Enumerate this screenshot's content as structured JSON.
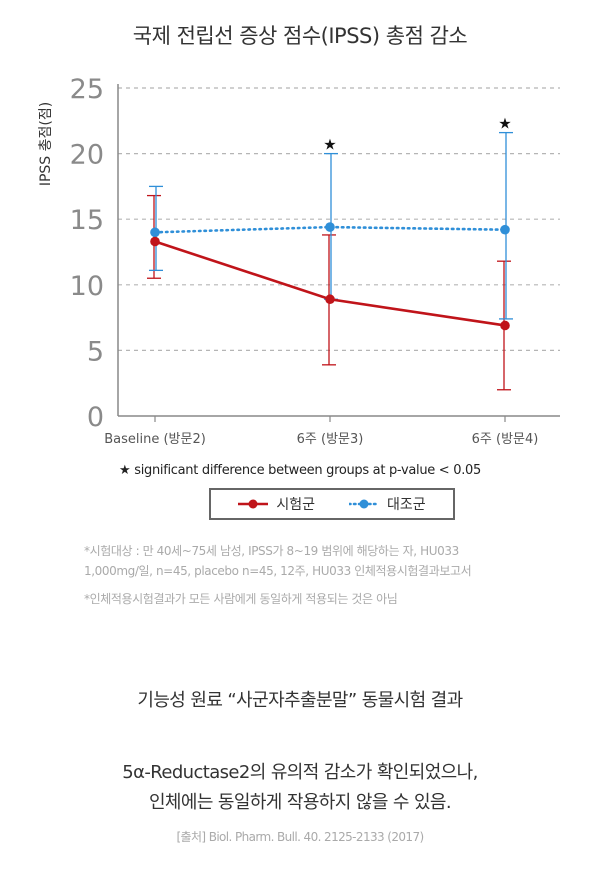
{
  "chart_data": {
    "type": "line",
    "title": "국제 전립선 증상 점수(IPSS) 총점 감소",
    "ylabel": "IPSS 총점(점)",
    "xlabel": "",
    "categories": [
      "Baseline (방문2)",
      "6주 (방문3)",
      "6주 (방문4)"
    ],
    "ylim": [
      0,
      25
    ],
    "yticks": [
      0,
      5,
      10,
      15,
      20,
      25
    ],
    "grid": true,
    "series": [
      {
        "name": "시험군",
        "color": "#c0141a",
        "line_style": "solid",
        "values": [
          13.3,
          8.9,
          6.9
        ],
        "error_low": [
          10.5,
          3.9,
          2.0
        ],
        "error_high": [
          16.8,
          13.8,
          11.8
        ]
      },
      {
        "name": "대조군",
        "color": "#2f8fd8",
        "line_style": "dotted",
        "values": [
          14.0,
          14.4,
          14.2
        ],
        "error_low": [
          11.1,
          8.9,
          7.4
        ],
        "error_high": [
          17.5,
          20.0,
          21.6
        ]
      }
    ],
    "significance_markers": [
      {
        "category_index": 1,
        "symbol": "★",
        "y": 20.7
      },
      {
        "category_index": 2,
        "symbol": "★",
        "y": 22.3
      }
    ],
    "significance_note": {
      "symbol": "★",
      "text": "significant difference between groups at p-value < 0.05"
    },
    "legend_position": "bottom-center"
  },
  "footnotes": [
    "*시험대상 : 만 40세~75세 남성, IPSS가 8~19 범위에 해당하는 자, HU033",
    "1,000mg/일, n=45, placebo n=45, 12주, HU033 인체적용시험결과보고서",
    "*인체적용시험결과가 모든 사람에게 동일하게 적용되는 것은 아님"
  ],
  "bottom": {
    "heading": "기능성 원료 “사군자추출분말” 동물시험 결과",
    "line1": "5α-Reductase2의 유의적 감소가 확인되었으나,",
    "line2": "인체에는 동일하게 작용하지 않을 수 있음.",
    "source": "[출처] Biol. Pharm. Bull. 40. 2125-2133 (2017)"
  }
}
